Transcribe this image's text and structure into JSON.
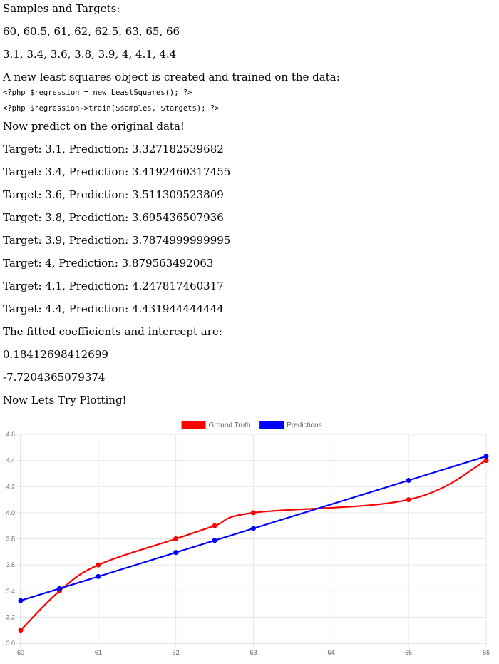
{
  "heading_samples": "Samples and Targets:",
  "samples_text": "60, 60.5, 61, 62, 62.5, 63, 65, 66",
  "targets_text": "3.1, 3.4, 3.6, 3.8, 3.9, 4, 4.1, 4.4",
  "create_text": "A new least squares object is created and trained on the data:",
  "code": [
    "<?php $regression = new LeastSquares(); ?>",
    "<?php $regression->train($samples, $targets); ?>"
  ],
  "predict_heading": "Now predict on the original data!",
  "predictions": [
    "Target: 3.1, Prediction: 3.327182539682",
    "Target: 3.4, Prediction: 3.4192460317455",
    "Target: 3.6, Prediction: 3.511309523809",
    "Target: 3.8, Prediction: 3.695436507936",
    "Target: 3.9, Prediction: 3.7874999999995",
    "Target: 4, Prediction: 3.879563492063",
    "Target: 4.1, Prediction: 4.247817460317",
    "Target: 4.4, Prediction: 4.431944444444"
  ],
  "coef_heading": "The fitted coefficients and intercept are:",
  "coefficient": "0.18412698412699",
  "intercept": "-7.7204365079374",
  "plot_heading": "Now Lets Try Plotting!",
  "chart_data": {
    "type": "line",
    "x": [
      60,
      60.5,
      61,
      62,
      62.5,
      63,
      65,
      66
    ],
    "series": [
      {
        "name": "Ground Truth",
        "color": "#ff0000",
        "values": [
          3.1,
          3.4,
          3.6,
          3.8,
          3.9,
          4.0,
          4.1,
          4.4
        ]
      },
      {
        "name": "Predictions",
        "color": "#0000ff",
        "values": [
          3.327182539682,
          3.4192460317455,
          3.511309523809,
          3.695436507936,
          3.7874999999995,
          3.879563492063,
          4.247817460317,
          4.431944444444
        ]
      }
    ],
    "xticks": [
      "60",
      "61",
      "62",
      "63",
      "64",
      "65",
      "66"
    ],
    "xlim": [
      60,
      66
    ],
    "yticks": [
      "3.0",
      "3.2",
      "3.4",
      "3.6",
      "3.8",
      "4.0",
      "4.2",
      "4.4",
      "4.6"
    ],
    "ylim": [
      3.0,
      4.6
    ],
    "grid": true,
    "legend": "top-center",
    "title": "",
    "xlabel": "",
    "ylabel": ""
  }
}
